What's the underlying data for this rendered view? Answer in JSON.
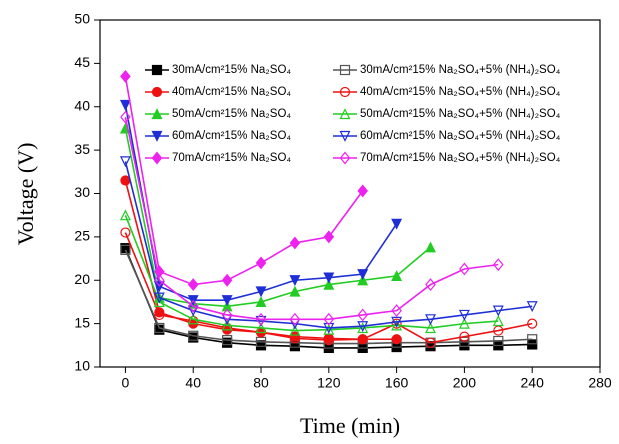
{
  "chart_data": {
    "type": "line",
    "xlabel": "Time (min)",
    "ylabel": "Voltage (V)",
    "x": [
      0,
      20,
      40,
      60,
      80,
      100,
      120,
      140,
      160,
      180,
      200,
      220,
      240
    ],
    "xlim": [
      -15,
      280
    ],
    "xticks": [
      0,
      40,
      80,
      120,
      160,
      200,
      240,
      280
    ],
    "ylim": [
      10,
      50
    ],
    "yticks": [
      10,
      15,
      20,
      25,
      30,
      35,
      40,
      45,
      50
    ],
    "series": [
      {
        "name": "30mA/cm²15% Na₂SO₄",
        "color": "#000000",
        "marker": "square",
        "filled": true,
        "values": [
          23.7,
          14.3,
          13.4,
          12.8,
          12.5,
          12.4,
          12.2,
          12.2,
          12.3,
          12.4,
          12.5,
          12.5,
          12.6
        ]
      },
      {
        "name": "30mA/cm²15% Na₂SO₄+5% (NH₄)₂SO₄",
        "color": "#555555",
        "marker": "square",
        "filled": false,
        "values": [
          23.5,
          14.5,
          13.6,
          13.1,
          12.9,
          12.8,
          12.7,
          12.7,
          12.8,
          12.8,
          12.9,
          13.0,
          13.2
        ]
      },
      {
        "name": "40mA/cm²15% Na₂SO₄",
        "color": "#ee1111",
        "marker": "circle",
        "filled": true,
        "values": [
          31.5,
          16.3,
          15.0,
          14.3,
          14.0,
          13.5,
          13.3,
          13.2,
          13.2,
          null,
          null,
          null,
          null
        ]
      },
      {
        "name": "40mA/cm²15% Na₂SO₄+5% (NH₄)₂SO₄",
        "color": "#ee1111",
        "marker": "circle",
        "filled": false,
        "values": [
          25.5,
          16.0,
          15.3,
          14.5,
          14.0,
          13.3,
          13.1,
          13.2,
          15.0,
          12.8,
          13.5,
          14.2,
          15.0
        ]
      },
      {
        "name": "50mA/cm²15% Na₂SO₄",
        "color": "#22cc22",
        "marker": "triangle",
        "filled": true,
        "values": [
          37.5,
          18.0,
          17.3,
          17.0,
          17.5,
          18.7,
          19.5,
          20.0,
          20.5,
          23.8,
          null,
          null,
          null
        ]
      },
      {
        "name": "50mA/cm²15% Na₂SO₄+5% (NH₄)₂SO₄",
        "color": "#22cc22",
        "marker": "triangle",
        "filled": false,
        "values": [
          27.5,
          17.5,
          15.5,
          14.8,
          14.5,
          14.2,
          14.3,
          14.5,
          14.8,
          14.5,
          15.0,
          15.3,
          null
        ]
      },
      {
        "name": "60mA/cm²15% Na₂SO₄",
        "color": "#1f2fd6",
        "marker": "down",
        "filled": true,
        "values": [
          40.2,
          19.3,
          17.7,
          17.7,
          18.7,
          20.0,
          20.3,
          20.7,
          26.5,
          null,
          null,
          null,
          null
        ]
      },
      {
        "name": "60mA/cm²15% Na₂SO₄+5% (NH₄)₂SO₄",
        "color": "#1f2fd6",
        "marker": "down",
        "filled": false,
        "values": [
          33.7,
          18.0,
          16.5,
          15.5,
          15.3,
          15.0,
          14.5,
          14.7,
          15.2,
          15.5,
          16.0,
          16.5,
          17.0
        ]
      },
      {
        "name": "70mA/cm²15% Na₂SO₄",
        "color": "#ee22ee",
        "marker": "diamond",
        "filled": true,
        "values": [
          43.5,
          21.0,
          19.5,
          20.0,
          22.0,
          24.3,
          25.0,
          30.3,
          null,
          null,
          null,
          null,
          null
        ]
      },
      {
        "name": "70mA/cm²15% Na₂SO₄+5% (NH₄)₂SO₄",
        "color": "#ee22ee",
        "marker": "diamond",
        "filled": false,
        "values": [
          38.8,
          20.0,
          17.0,
          16.0,
          15.5,
          15.5,
          15.5,
          16.0,
          16.5,
          19.5,
          21.3,
          21.8,
          null
        ]
      }
    ]
  }
}
